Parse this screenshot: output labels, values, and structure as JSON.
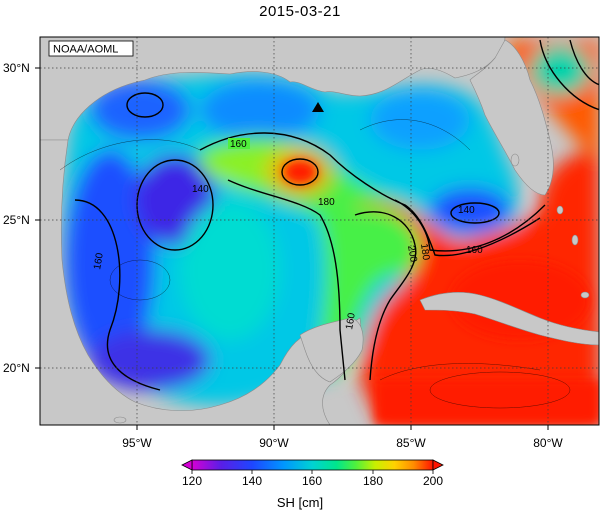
{
  "title": "2015-03-21",
  "credit": "NOAA/AOML",
  "lat_labels": [
    "30°N",
    "25°N",
    "20°N"
  ],
  "lon_labels": [
    "95°W",
    "90°W",
    "85°W",
    "80°W"
  ],
  "contour_labels": [
    "160",
    "140",
    "180",
    "140",
    "160",
    "200",
    "180",
    "160",
    "160"
  ],
  "colorbar": {
    "label": "SH [cm]",
    "ticks": [
      "120",
      "140",
      "160",
      "180",
      "200"
    ],
    "colors": [
      "#d400d4",
      "#5a1ee6",
      "#1e46ff",
      "#0096ff",
      "#00d2d2",
      "#00e68c",
      "#50f03c",
      "#c8f000",
      "#ffd200",
      "#ff8c00",
      "#ff3c00",
      "#ff1400"
    ]
  },
  "colors": {
    "land": "#c8c8c8",
    "ocean_blue": "#1e64ff",
    "ocean_cyan": "#00dcd2",
    "ocean_green": "#3cf03c",
    "ocean_red": "#ff2800",
    "contour": "#000000"
  },
  "icons": [
    "station-triangle-icon"
  ]
}
